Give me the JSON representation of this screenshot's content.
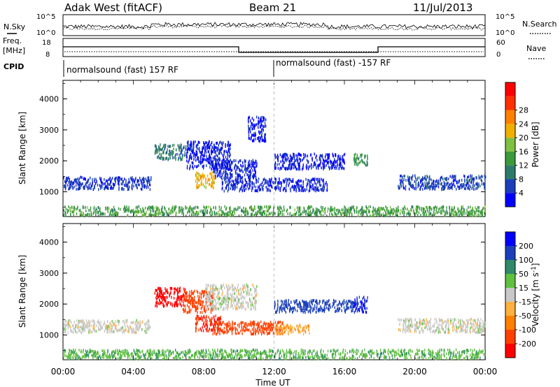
{
  "header": {
    "station": "Adak West (fitACF)",
    "beam": "Beam 21",
    "date": "11/Jul/2013"
  },
  "strip_noise": {
    "left_label": "N.Sky",
    "right_label": "N.Search",
    "left_ticks": [
      "10^5",
      "10^0"
    ],
    "right_ticks": [
      "10^5",
      "10^0"
    ]
  },
  "strip_freq": {
    "left_label_1": "Freq.",
    "left_label_2": "[MHz]",
    "left_ticks": [
      "18",
      "8"
    ],
    "right_label": "Nave",
    "right_ticks": [
      "60",
      "0"
    ]
  },
  "cpid": {
    "label": "CPID",
    "segments": [
      "normalsound (fast) 157 RF",
      "normalsound (fast) -157 RF"
    ]
  },
  "x_axis": {
    "label": "Time UT",
    "ticks": [
      "00:00",
      "04:00",
      "08:00",
      "12:00",
      "16:00",
      "20:00",
      "00:00"
    ]
  },
  "colors": {
    "power_scale": [
      "#0000ff",
      "#1a3fb8",
      "#2e7a6a",
      "#3a9a3a",
      "#7fc040",
      "#f0b000",
      "#ff8000",
      "#ff3000",
      "#ff0000"
    ],
    "velocity_scale": [
      "#ff0000",
      "#ff4000",
      "#ff8000",
      "#ffb040",
      "#c8c8c8",
      "#60c040",
      "#2e8a6a",
      "#1a3fb8",
      "#0000ff"
    ]
  },
  "chart_data": [
    {
      "type": "heatmap",
      "panel": "power",
      "ylabel": "Slant Range [km]",
      "yticks": [
        "1000",
        "2000",
        "3000",
        "4000"
      ],
      "ylim": [
        200,
        4600
      ],
      "xlim_hours": [
        0,
        24
      ],
      "colorbar_label": "Power [dB]",
      "colorbar_ticks": [
        "4",
        "8",
        "12",
        "16",
        "20",
        "24",
        "28"
      ],
      "clim": [
        0,
        32
      ],
      "echo_regions": [
        {
          "t0": 0.0,
          "t1": 5.0,
          "r0": 1050,
          "r1": 1450,
          "level": 7
        },
        {
          "t0": 5.2,
          "t1": 7.0,
          "r0": 2000,
          "r1": 2500,
          "level": 12
        },
        {
          "t0": 7.0,
          "t1": 9.5,
          "r0": 1700,
          "r1": 2600,
          "level": 5
        },
        {
          "t0": 7.5,
          "t1": 8.6,
          "r0": 1100,
          "r1": 1600,
          "level": 24
        },
        {
          "t0": 8.5,
          "t1": 11.0,
          "r0": 1400,
          "r1": 2000,
          "level": 6
        },
        {
          "t0": 9.0,
          "t1": 15.0,
          "r0": 1000,
          "r1": 1400,
          "level": 6
        },
        {
          "t0": 10.5,
          "t1": 11.5,
          "r0": 2600,
          "r1": 3400,
          "level": 5
        },
        {
          "t0": 12.0,
          "t1": 16.0,
          "r0": 1700,
          "r1": 2200,
          "level": 5
        },
        {
          "t0": 16.5,
          "t1": 17.3,
          "r0": 1800,
          "r1": 2200,
          "level": 15
        },
        {
          "t0": 19.0,
          "t1": 24.0,
          "r0": 1050,
          "r1": 1500,
          "level": 8
        },
        {
          "t0": 0.0,
          "t1": 24.0,
          "r0": 200,
          "r1": 500,
          "level": 16
        }
      ]
    },
    {
      "type": "heatmap",
      "panel": "velocity",
      "ylabel": "Slant Range [km]",
      "yticks": [
        "1000",
        "2000",
        "3000",
        "4000"
      ],
      "ylim": [
        200,
        4600
      ],
      "xlim_hours": [
        0,
        24
      ],
      "colorbar_label": "Velocity [m s^-1]",
      "colorbar_ticks": [
        "-200",
        "-100",
        "-50",
        "-15",
        "15",
        "50",
        "100",
        "200"
      ],
      "clim": [
        -250,
        250
      ],
      "echo_regions": [
        {
          "t0": 0.0,
          "t1": 5.0,
          "r0": 1050,
          "r1": 1450,
          "value": 0
        },
        {
          "t0": 5.2,
          "t1": 7.0,
          "r0": 1900,
          "r1": 2500,
          "value": -220
        },
        {
          "t0": 6.8,
          "t1": 8.5,
          "r0": 1700,
          "r1": 2400,
          "value": -180
        },
        {
          "t0": 7.5,
          "t1": 9.0,
          "r0": 1100,
          "r1": 1600,
          "value": -200
        },
        {
          "t0": 8.5,
          "t1": 12.5,
          "r0": 1000,
          "r1": 1400,
          "value": -120
        },
        {
          "t0": 12.0,
          "t1": 14.0,
          "r0": 1000,
          "r1": 1300,
          "value": -40
        },
        {
          "t0": 8.0,
          "t1": 11.0,
          "r0": 1800,
          "r1": 2600,
          "value": 0
        },
        {
          "t0": 12.0,
          "t1": 16.5,
          "r0": 1700,
          "r1": 2100,
          "value": 150
        },
        {
          "t0": 16.5,
          "t1": 17.3,
          "r0": 1700,
          "r1": 2200,
          "value": 200
        },
        {
          "t0": 19.0,
          "t1": 24.0,
          "r0": 1050,
          "r1": 1500,
          "value": 0
        },
        {
          "t0": 0.0,
          "t1": 24.0,
          "r0": 200,
          "r1": 500,
          "value": 40
        }
      ]
    }
  ]
}
